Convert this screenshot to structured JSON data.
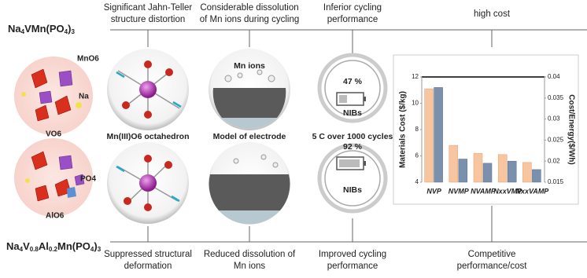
{
  "formula_top": [
    "Na",
    "4",
    "VMn(PO",
    "4",
    ")",
    "3"
  ],
  "formula_bottom": [
    "Na",
    "4",
    "V",
    "0.8",
    "Al",
    "0.2",
    "Mn(PO",
    "4",
    ")",
    "3"
  ],
  "top_labels": [
    [
      "Significant Jahn-Teller",
      "structure distortion"
    ],
    [
      "Considerable dissolution",
      "of Mn ions during cycling"
    ],
    [
      "Inferior cycling",
      "performance"
    ],
    [
      "high cost"
    ]
  ],
  "bottom_labels": [
    [
      "Suppressed structural",
      "deformation"
    ],
    [
      "Reduced dissolution of",
      "Mn ions"
    ],
    [
      "Improved cycling",
      "performance"
    ],
    [
      "Competitive",
      "performance/cost"
    ]
  ],
  "crystal_labels": [
    "MnO6",
    "Na",
    "VO6",
    "PO4",
    "AlO6"
  ],
  "middle_labels": [
    "Mn(III)O6 octahedron",
    "Model of electrode",
    "5 C over 1000 cycles"
  ],
  "electrode_label": "Mn ions",
  "battery_top": {
    "percent": "47 %",
    "label": "NIBs"
  },
  "battery_bottom": {
    "percent": "92 %",
    "label": "NIBs"
  },
  "chart_data": {
    "type": "bar",
    "categories": [
      "NVP",
      "NVMP",
      "NVAMP",
      "NxxVMP",
      "NxxVAMP"
    ],
    "ylabel": "Materials Cost ($/kg)",
    "y2label": "Cost/Energy($/Wh)",
    "ylim": [
      4,
      12
    ],
    "yticks": [
      4,
      6,
      8,
      10,
      12
    ],
    "y2lim": [
      0.015,
      0.04
    ],
    "y2ticks": [
      0.015,
      0.02,
      0.025,
      0.03,
      0.035,
      0.04
    ],
    "series": [
      {
        "name": "Materials Cost",
        "color": "#f7c59f",
        "values": [
          11.1,
          6.8,
          6.2,
          6.1,
          5.5
        ]
      },
      {
        "name": "Cost/Energy",
        "color": "#7b90ad",
        "axis": "y2",
        "values": [
          0.0375,
          0.0205,
          0.0195,
          0.02,
          0.018
        ]
      }
    ]
  }
}
